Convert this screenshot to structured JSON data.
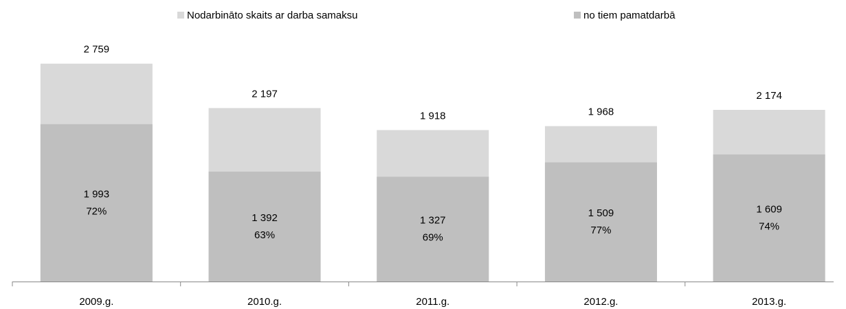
{
  "chart_data": {
    "type": "bar",
    "categories": [
      "2009.g.",
      "2010.g.",
      "2011.g.",
      "2012.g.",
      "2013.g."
    ],
    "series": [
      {
        "name": "Nodarbināto skaits ar darba samaksu",
        "color": "#d9d9d9",
        "values": [
          2759,
          2197,
          1918,
          1968,
          2174
        ],
        "value_labels": [
          "2 759",
          "2 197",
          "1 918",
          "1 968",
          "2 174"
        ]
      },
      {
        "name": "no tiem pamatdarbā",
        "color": "#bfbfbf",
        "values": [
          1993,
          1392,
          1327,
          1509,
          1609
        ],
        "value_labels": [
          "1 993",
          "1 392",
          "1 327",
          "1 509",
          "1 609"
        ],
        "shares": [
          72,
          63,
          69,
          77,
          74
        ],
        "share_labels": [
          "72%",
          "63%",
          "69%",
          "77%",
          "74%"
        ]
      }
    ],
    "ylim": [
      0,
      3000
    ],
    "overlap": true,
    "legend": "top"
  }
}
